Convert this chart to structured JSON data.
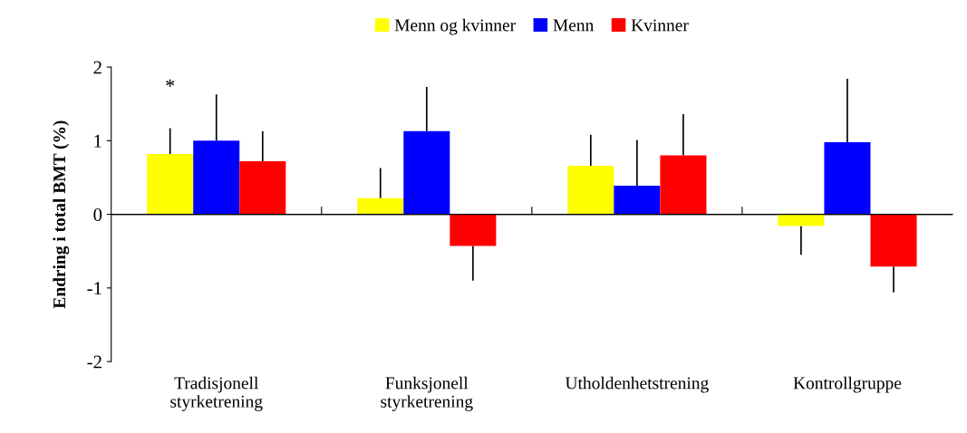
{
  "chart_data": {
    "type": "bar",
    "ylabel": "Endring i total BMT (%)",
    "categories": [
      "Tradisjonell\nstyrketrening",
      "Funksjonell\nstyrketrening",
      "Utholdenhetstrening",
      "Kontrollgruppe"
    ],
    "series": [
      {
        "name": "Menn og kvinner",
        "color": "#ffff00",
        "values": [
          0.82,
          0.22,
          0.66,
          -0.16
        ],
        "errors": [
          [
            0.82,
            1.17
          ],
          [
            0.22,
            0.63
          ],
          [
            0.66,
            1.08
          ],
          [
            -0.55,
            -0.16
          ]
        ]
      },
      {
        "name": "Menn",
        "color": "#0000ff",
        "values": [
          1.0,
          1.13,
          0.39,
          0.98
        ],
        "errors": [
          [
            1.0,
            1.63
          ],
          [
            1.13,
            1.73
          ],
          [
            0.39,
            1.01
          ],
          [
            0.98,
            1.84
          ]
        ]
      },
      {
        "name": "Kvinner",
        "color": "#ff0000",
        "values": [
          0.72,
          -0.43,
          0.8,
          -0.71
        ],
        "errors": [
          [
            0.72,
            1.13
          ],
          [
            -0.9,
            -0.43
          ],
          [
            0.8,
            1.36
          ],
          [
            -1.06,
            -0.71
          ]
        ]
      }
    ],
    "ref_lines": [
      {
        "axis": "y",
        "value": 0,
        "color": "#000000"
      }
    ],
    "ylim": [
      -2,
      2
    ],
    "yticks": [
      -2,
      -1,
      0,
      1,
      2
    ],
    "grid": false,
    "legend": "top",
    "annotations": [
      "*"
    ]
  }
}
